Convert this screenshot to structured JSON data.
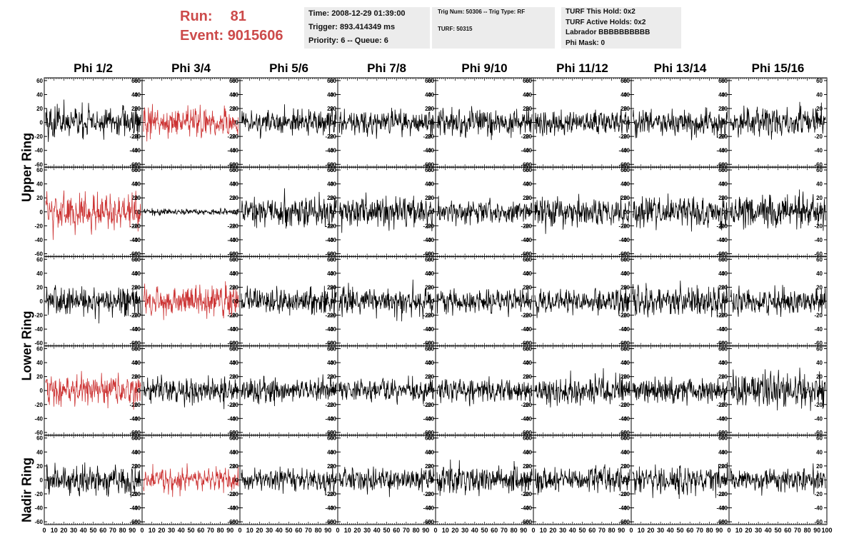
{
  "header": {
    "run_label": "Run:",
    "run_value": "81",
    "event_label": "Event:",
    "event_value": "9015606"
  },
  "info1": {
    "time": "Time: 2008-12-29 01:39:00",
    "trigger": "Trigger: 893.414349 ms",
    "priority": "Priority: 6 -- Queue: 6"
  },
  "info2": {
    "trig": "Trig Num: 50306 -- Trig Type: RF",
    "turf": "TURF: 50315"
  },
  "info3": {
    "this_hold": "TURF This Hold: 0x2",
    "active_holds": "TURF Active Holds: 0x2",
    "labrador": "Labrador BBBBBBBBBB",
    "phi_mask": "Phi Mask: 0"
  },
  "columns": [
    "Phi 1/2",
    "Phi 3/4",
    "Phi 5/6",
    "Phi 7/8",
    "Phi 9/10",
    "Phi 11/12",
    "Phi 13/14",
    "Phi 15/16"
  ],
  "rings": [
    "Upper Ring",
    "Lower Ring",
    "Nadir Ring"
  ],
  "colors": {
    "normal_trace": "#000000",
    "highlight_trace": "#cc3333"
  },
  "chart_data": {
    "type": "line",
    "layout": "5 rows x 8 columns of waveform panels",
    "xlim": [
      0,
      100
    ],
    "ylim": [
      -64,
      64
    ],
    "y_ticks": [
      -60,
      -40,
      -20,
      0,
      20,
      40,
      60
    ],
    "x_tick_labels": [
      "0",
      "10",
      "20",
      "30",
      "40",
      "50",
      "60",
      "70",
      "80",
      "90",
      "100"
    ],
    "samples_per_trace": 256,
    "panels": [
      [
        {
          "amp": 16,
          "hl": false
        },
        {
          "amp": 14,
          "hl": true
        },
        {
          "amp": 13,
          "hl": false
        },
        {
          "amp": 13,
          "hl": false
        },
        {
          "amp": 14,
          "hl": false
        },
        {
          "amp": 12,
          "hl": false
        },
        {
          "amp": 13,
          "hl": false
        },
        {
          "amp": 15,
          "hl": false
        }
      ],
      [
        {
          "amp": 17,
          "hl": true
        },
        {
          "amp": 3,
          "hl": false
        },
        {
          "amp": 15,
          "hl": false
        },
        {
          "amp": 15,
          "hl": false
        },
        {
          "amp": 12,
          "hl": false
        },
        {
          "amp": 15,
          "hl": false
        },
        {
          "amp": 15,
          "hl": false
        },
        {
          "amp": 17,
          "hl": false
        }
      ],
      [
        {
          "amp": 15,
          "hl": false
        },
        {
          "amp": 15,
          "hl": true
        },
        {
          "amp": 13,
          "hl": false
        },
        {
          "amp": 14,
          "hl": false
        },
        {
          "amp": 13,
          "hl": false
        },
        {
          "amp": 12,
          "hl": false
        },
        {
          "amp": 15,
          "hl": false
        },
        {
          "amp": 13,
          "hl": false
        }
      ],
      [
        {
          "amp": 15,
          "hl": true
        },
        {
          "amp": 14,
          "hl": false
        },
        {
          "amp": 12,
          "hl": false
        },
        {
          "amp": 12,
          "hl": false
        },
        {
          "amp": 12,
          "hl": false
        },
        {
          "amp": 14,
          "hl": false
        },
        {
          "amp": 13,
          "hl": false
        },
        {
          "amp": 18,
          "hl": false
        }
      ],
      [
        {
          "amp": 15,
          "hl": false
        },
        {
          "amp": 12,
          "hl": true
        },
        {
          "amp": 11,
          "hl": false
        },
        {
          "amp": 12,
          "hl": false
        },
        {
          "amp": 14,
          "hl": false
        },
        {
          "amp": 13,
          "hl": false
        },
        {
          "amp": 14,
          "hl": false
        },
        {
          "amp": 12,
          "hl": false
        }
      ]
    ]
  }
}
